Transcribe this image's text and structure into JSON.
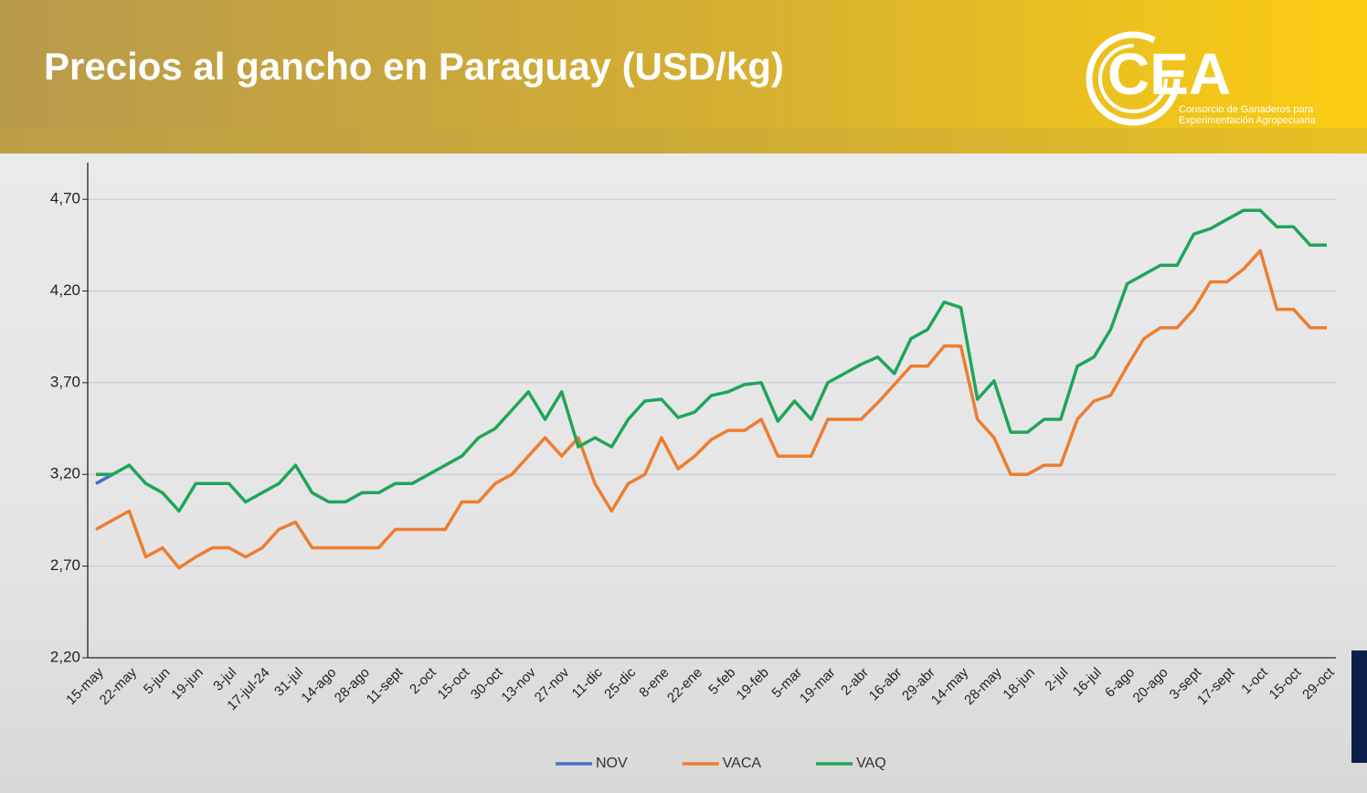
{
  "chart_data": {
    "type": "line",
    "title": "Precios al gancho en Paraguay (USD/kg)",
    "categories": [
      "15-may",
      null,
      "22-may",
      null,
      "5-jun",
      null,
      "19-jun",
      null,
      "3-jul",
      null,
      "17-jul-24",
      null,
      "31-jul",
      null,
      "14-ago",
      null,
      "28-ago",
      null,
      "11-sept",
      null,
      "2-oct",
      null,
      "15-oct",
      null,
      "30-oct",
      null,
      "13-nov",
      null,
      "27-nov",
      null,
      "11-dic",
      null,
      "25-dic",
      null,
      "8-ene",
      null,
      "22-ene",
      null,
      "5-feb",
      null,
      "19-feb",
      null,
      "5-mar",
      null,
      "19-mar",
      null,
      "2-abr",
      null,
      "16-abr",
      null,
      "29-abr",
      null,
      "14-may",
      null,
      "28-may",
      null,
      "18-jun",
      null,
      "2-jul",
      null,
      "16-jul",
      null,
      "6-ago",
      null,
      "20-ago",
      null,
      "3-sept",
      null,
      "17-sept",
      null,
      "1-oct",
      null,
      "15-oct",
      null,
      "29-oct"
    ],
    "series": [
      {
        "name": "NOV",
        "color": "#4472c4",
        "values": [
          3.15,
          3.2,
          null,
          null,
          null,
          null,
          null,
          null,
          null,
          null,
          null,
          null,
          null,
          null,
          null,
          null,
          null,
          null,
          null,
          null,
          null,
          null,
          null,
          null,
          null,
          null,
          null,
          null,
          null,
          null,
          null,
          null,
          null,
          null,
          null,
          null,
          null,
          null,
          null,
          null,
          null,
          null,
          null,
          null,
          null,
          null,
          null,
          null,
          null,
          null,
          null,
          null,
          null,
          null,
          null,
          null,
          null,
          null,
          null,
          null,
          null,
          null,
          null,
          null,
          null,
          null,
          null,
          null,
          null,
          null,
          null,
          null,
          null,
          null,
          null
        ]
      },
      {
        "name": "VACA",
        "color": "#ed7d31",
        "values": [
          2.9,
          2.95,
          3.0,
          2.75,
          2.8,
          2.69,
          2.75,
          2.8,
          2.8,
          2.75,
          2.8,
          2.9,
          2.94,
          2.8,
          2.8,
          2.8,
          2.8,
          2.8,
          2.9,
          2.9,
          2.9,
          2.9,
          3.05,
          3.05,
          3.15,
          3.2,
          3.3,
          3.4,
          3.3,
          3.4,
          3.15,
          3.0,
          3.15,
          3.2,
          3.4,
          3.23,
          3.3,
          3.39,
          3.44,
          3.44,
          3.5,
          3.3,
          3.3,
          3.3,
          3.5,
          3.5,
          3.5,
          3.59,
          3.69,
          3.79,
          3.79,
          3.9,
          3.9,
          3.5,
          3.4,
          3.2,
          3.2,
          3.25,
          3.25,
          3.5,
          3.6,
          3.63,
          3.79,
          3.94,
          4.0,
          4.0,
          4.1,
          4.25,
          4.25,
          4.32,
          4.42,
          4.1,
          4.1,
          4.0,
          4.0
        ]
      },
      {
        "name": "VAQ",
        "color": "#1fa55a",
        "values": [
          3.2,
          3.2,
          3.25,
          3.15,
          3.1,
          3.0,
          3.15,
          3.15,
          3.15,
          3.05,
          3.1,
          3.15,
          3.25,
          3.1,
          3.05,
          3.05,
          3.1,
          3.1,
          3.15,
          3.15,
          3.2,
          3.25,
          3.3,
          3.4,
          3.45,
          3.55,
          3.65,
          3.5,
          3.65,
          3.35,
          3.4,
          3.35,
          3.5,
          3.6,
          3.61,
          3.51,
          3.54,
          3.63,
          3.65,
          3.69,
          3.7,
          3.49,
          3.6,
          3.5,
          3.7,
          3.75,
          3.8,
          3.84,
          3.75,
          3.94,
          3.99,
          4.14,
          4.11,
          3.61,
          3.71,
          3.43,
          3.43,
          3.5,
          3.5,
          3.79,
          3.84,
          3.99,
          4.24,
          4.29,
          4.34,
          4.34,
          4.51,
          4.54,
          4.59,
          4.64,
          4.64,
          4.55,
          4.55,
          4.45,
          4.45
        ]
      }
    ],
    "ylim": [
      2.2,
      4.9
    ],
    "yticks": [
      {
        "value": 2.2,
        "label": "2,20"
      },
      {
        "value": 2.7,
        "label": "2,70"
      },
      {
        "value": 3.2,
        "label": "3,20"
      },
      {
        "value": 3.7,
        "label": "3,70"
      },
      {
        "value": 4.2,
        "label": "4,20"
      },
      {
        "value": 4.7,
        "label": "4,70"
      }
    ],
    "grid": true,
    "legend": "bottom"
  },
  "logo": {
    "name": "CEA",
    "line1": "Consorcio de Ganaderos para",
    "line2": "Experimentación Agropecuaria"
  }
}
